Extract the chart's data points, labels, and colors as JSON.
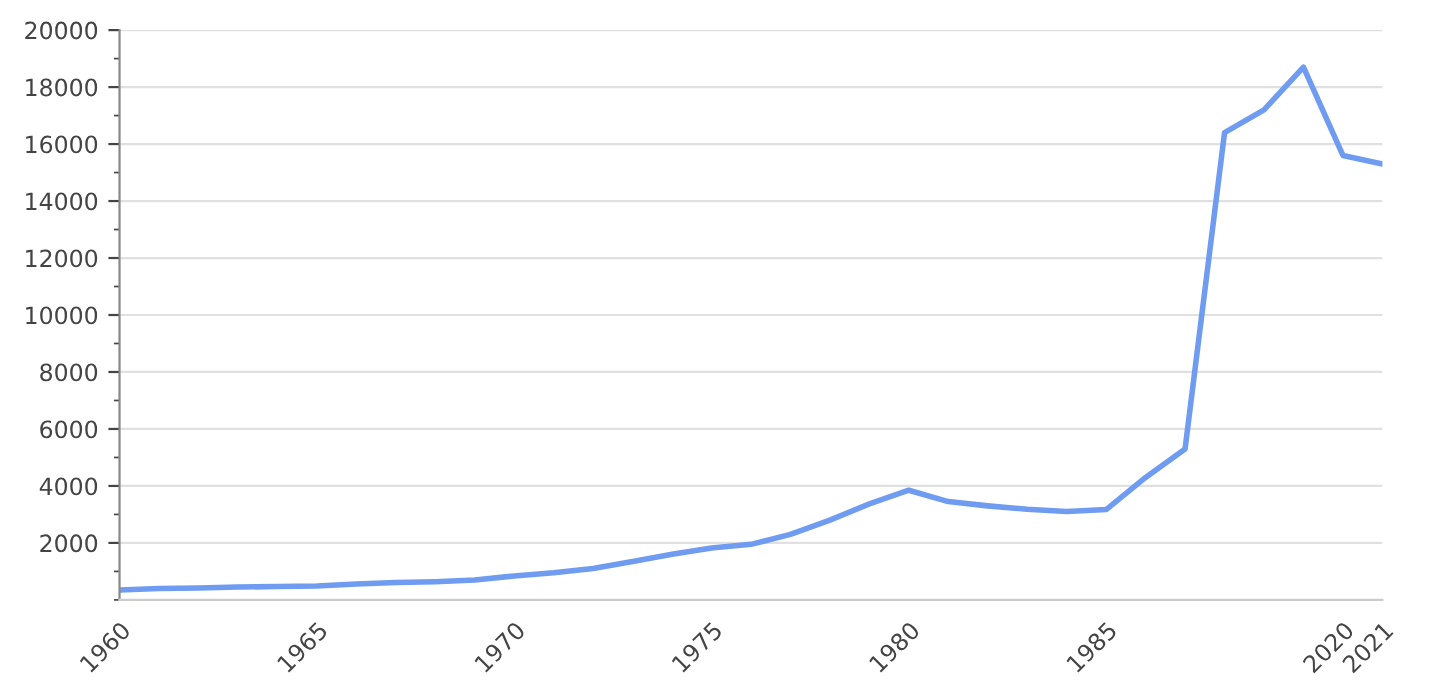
{
  "chart_data": {
    "type": "line",
    "categories": [
      "1960",
      null,
      null,
      null,
      null,
      "1965",
      null,
      null,
      null,
      null,
      "1970",
      null,
      null,
      null,
      null,
      "1975",
      null,
      null,
      null,
      null,
      "1980",
      null,
      null,
      null,
      null,
      "1985",
      null,
      null,
      null,
      null,
      null,
      "2020",
      "2021"
    ],
    "series": [
      {
        "color": "#6f9cf0",
        "values": [
          350,
          400,
          420,
          450,
          470,
          490,
          560,
          610,
          640,
          700,
          840,
          950,
          1100,
          1350,
          1600,
          1820,
          1950,
          2300,
          2800,
          3370,
          3850,
          3450,
          3300,
          3180,
          3100,
          3170,
          4300,
          5300,
          16400,
          17200,
          18700,
          15600,
          15300
        ]
      }
    ],
    "ylim": [
      0,
      20000
    ],
    "yticks": [
      2000,
      4000,
      6000,
      8000,
      10000,
      12000,
      14000,
      16000,
      18000,
      20000
    ],
    "grid": "y",
    "legend": false,
    "marker": "none",
    "line_style": "solid"
  }
}
